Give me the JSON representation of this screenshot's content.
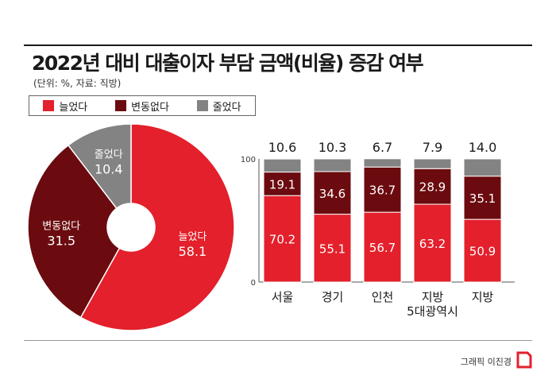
{
  "header": {
    "title": "2022년 대비 대출이자 부담 금액(비율) 증감 여부",
    "subtitle": "(단위: %, 자료: 직방)"
  },
  "legend": [
    {
      "label": "늘었다",
      "color": "#e3202b"
    },
    {
      "label": "변동없다",
      "color": "#6b0b0f"
    },
    {
      "label": "줄었다",
      "color": "#838383"
    }
  ],
  "footer": {
    "credit": "그래픽 이진경"
  },
  "colors": {
    "increase": "#e3202b",
    "nochange": "#6b0b0f",
    "decrease": "#838383"
  },
  "chart_data": [
    {
      "type": "pie",
      "labels": [
        "늘었다",
        "변동없다",
        "줄었다"
      ],
      "values": [
        58.1,
        31.5,
        10.4
      ],
      "value_labels": [
        "58.1",
        "31.5",
        "10.4"
      ]
    },
    {
      "type": "bar",
      "stacked": true,
      "categories": [
        "서울",
        "경기",
        "인천",
        "지방\n5대광역시",
        "지방"
      ],
      "series": [
        {
          "name": "늘었다",
          "values": [
            70.2,
            55.1,
            56.7,
            63.2,
            50.9
          ],
          "labels": [
            "70.2",
            "55.1",
            "56.7",
            "63.2",
            "50.9"
          ]
        },
        {
          "name": "변동없다",
          "values": [
            19.1,
            34.6,
            36.7,
            28.9,
            35.1
          ],
          "labels": [
            "19.1",
            "34.6",
            "36.7",
            "28.9",
            "35.1"
          ]
        },
        {
          "name": "줄었다",
          "values": [
            10.6,
            10.3,
            6.7,
            7.9,
            14.0
          ],
          "labels": [
            "10.6",
            "10.3",
            "6.7",
            "7.9",
            "14.0"
          ]
        }
      ],
      "ylim": [
        0,
        100
      ],
      "ytick_labels": [
        "0",
        "100"
      ]
    }
  ]
}
